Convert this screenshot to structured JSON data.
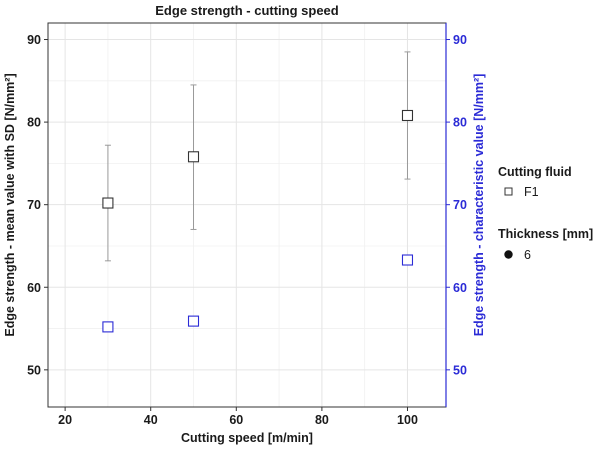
{
  "chart_data": {
    "type": "scatter",
    "title": "Edge strength - cutting speed",
    "xlabel": "Cutting speed [m/min]",
    "ylabel": "Edge strength - mean value with SD [N/mm²]",
    "ylabel_right": "Edge strength - characteristic value [N/mm²]",
    "xlim": [
      16,
      109
    ],
    "ylim": [
      45.5,
      92
    ],
    "xticks": [
      20,
      40,
      60,
      80,
      100
    ],
    "yticks": [
      50,
      60,
      70,
      80,
      90
    ],
    "grid": true,
    "series": [
      {
        "name": "mean value with SD",
        "axis": "left",
        "color": "#333333",
        "marker": "open-square",
        "points": [
          {
            "x": 30,
            "y": 70.2,
            "sd_low": 63.2,
            "sd_high": 77.2
          },
          {
            "x": 50,
            "y": 75.8,
            "sd_low": 67.0,
            "sd_high": 84.5
          },
          {
            "x": 100,
            "y": 80.8,
            "sd_low": 73.1,
            "sd_high": 88.5
          }
        ]
      },
      {
        "name": "characteristic value",
        "axis": "right",
        "color": "#2b2bd6",
        "marker": "open-square",
        "points": [
          {
            "x": 30,
            "y": 55.2
          },
          {
            "x": 50,
            "y": 55.9
          },
          {
            "x": 100,
            "y": 63.3
          }
        ]
      }
    ],
    "legend": {
      "placement": "right",
      "groups": [
        {
          "title": "Cutting fluid",
          "entries": [
            {
              "label": "F1",
              "symbol": "open-square"
            }
          ]
        },
        {
          "title": "Thickness [mm]",
          "entries": [
            {
              "label": "6",
              "symbol": "filled-circle"
            }
          ]
        }
      ]
    }
  },
  "colors": {
    "left_axis": "#1a1a1a",
    "right_axis": "#2b2bd6",
    "grid": "#e5e5e5",
    "errorbar": "#9a9a9a"
  }
}
